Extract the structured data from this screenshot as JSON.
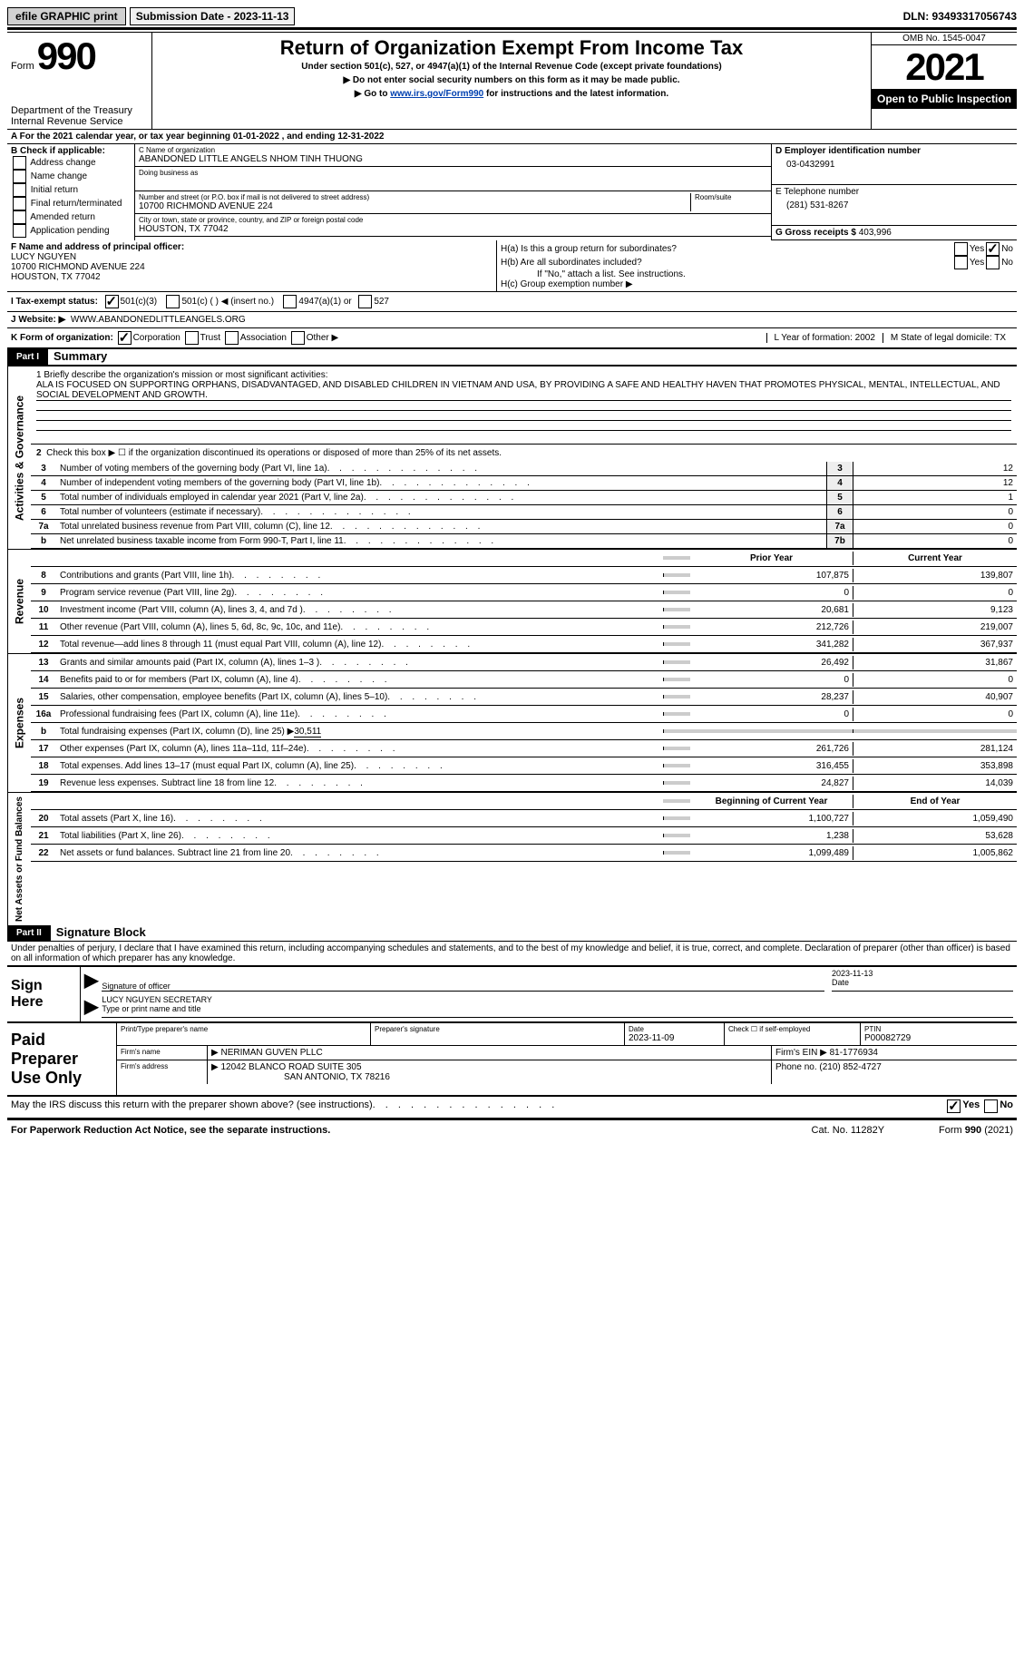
{
  "top": {
    "efile": "efile GRAPHIC print",
    "sub_date_label": "Submission Date - 2023-11-13",
    "dln": "DLN: 93493317056743"
  },
  "header": {
    "form_label": "Form",
    "form_num": "990",
    "title": "Return of Organization Exempt From Income Tax",
    "sub1": "Under section 501(c), 527, or 4947(a)(1) of the Internal Revenue Code (except private foundations)",
    "sub2": "▶ Do not enter social security numbers on this form as it may be made public.",
    "sub3_a": "▶ Go to ",
    "sub3_link": "www.irs.gov/Form990",
    "sub3_b": " for instructions and the latest information.",
    "dept": "Department of the Treasury Internal Revenue Service",
    "omb": "OMB No. 1545-0047",
    "year": "2021",
    "inspect": "Open to Public Inspection"
  },
  "rowA": "A For the 2021 calendar year, or tax year beginning 01-01-2022   , and ending 12-31-2022",
  "colB": {
    "label": "B Check if applicable:",
    "items": [
      "Address change",
      "Name change",
      "Initial return",
      "Final return/terminated",
      "Amended return",
      "Application pending"
    ]
  },
  "colC": {
    "name_label": "C Name of organization",
    "name": "ABANDONED LITTLE ANGELS NHOM TINH THUONG",
    "dba_label": "Doing business as",
    "street_label": "Number and street (or P.O. box if mail is not delivered to street address)",
    "room_label": "Room/suite",
    "street": "10700 RICHMOND AVENUE 224",
    "city_label": "City or town, state or province, country, and ZIP or foreign postal code",
    "city": "HOUSTON, TX  77042"
  },
  "colD": {
    "ein_label": "D Employer identification number",
    "ein": "03-0432991",
    "phone_label": "E Telephone number",
    "phone": "(281) 531-8267",
    "gross_label": "G Gross receipts $",
    "gross": "403,996"
  },
  "rowF": {
    "label": "F  Name and address of principal officer:",
    "name": "LUCY NGUYEN",
    "addr1": "10700 RICHMOND AVENUE 224",
    "addr2": "HOUSTON, TX  77042"
  },
  "rowH": {
    "ha": "H(a)  Is this a group return for subordinates?",
    "hb": "H(b)  Are all subordinates included?",
    "hb_note": "If \"No,\" attach a list. See instructions.",
    "hc": "H(c)  Group exemption number ▶"
  },
  "rowI": {
    "label": "I    Tax-exempt status:",
    "o1": "501(c)(3)",
    "o2": "501(c) (   ) ◀ (insert no.)",
    "o3": "4947(a)(1) or",
    "o4": "527"
  },
  "rowJ": {
    "label": "J    Website: ▶",
    "val": "WWW.ABANDONEDLITTLEANGELS.ORG"
  },
  "rowK": {
    "label": "K Form of organization:",
    "o1": "Corporation",
    "o2": "Trust",
    "o3": "Association",
    "o4": "Other ▶",
    "L": "L Year of formation: 2002",
    "M": "M State of legal domicile: TX"
  },
  "part1": {
    "tag": "Part I",
    "title": "Summary"
  },
  "mission": {
    "label": "1   Briefly describe the organization's mission or most significant activities:",
    "text": "ALA IS FOCUSED ON SUPPORTING ORPHANS, DISADVANTAGED, AND DISABLED CHILDREN IN VIETNAM AND USA, BY PROVIDING A SAFE AND HEALTHY HAVEN THAT PROMOTES PHYSICAL, MENTAL, INTELLECTUAL, AND SOCIAL DEVELOPMENT AND GROWTH."
  },
  "gov": {
    "r2": "Check this box ▶ ☐  if the organization discontinued its operations or disposed of more than 25% of its net assets.",
    "rows": [
      {
        "n": "3",
        "d": "Number of voting members of the governing body (Part VI, line 1a)",
        "l": "3",
        "v": "12"
      },
      {
        "n": "4",
        "d": "Number of independent voting members of the governing body (Part VI, line 1b)",
        "l": "4",
        "v": "12"
      },
      {
        "n": "5",
        "d": "Total number of individuals employed in calendar year 2021 (Part V, line 2a)",
        "l": "5",
        "v": "1"
      },
      {
        "n": "6",
        "d": "Total number of volunteers (estimate if necessary)",
        "l": "6",
        "v": "0"
      },
      {
        "n": "7a",
        "d": "Total unrelated business revenue from Part VIII, column (C), line 12",
        "l": "7a",
        "v": "0"
      },
      {
        "n": "b",
        "d": "Net unrelated business taxable income from Form 990-T, Part I, line 11",
        "l": "7b",
        "v": "0"
      }
    ]
  },
  "rev": {
    "hdr_prior": "Prior Year",
    "hdr_cur": "Current Year",
    "rows": [
      {
        "n": "8",
        "d": "Contributions and grants (Part VIII, line 1h)",
        "p": "107,875",
        "c": "139,807"
      },
      {
        "n": "9",
        "d": "Program service revenue (Part VIII, line 2g)",
        "p": "0",
        "c": "0"
      },
      {
        "n": "10",
        "d": "Investment income (Part VIII, column (A), lines 3, 4, and 7d )",
        "p": "20,681",
        "c": "9,123"
      },
      {
        "n": "11",
        "d": "Other revenue (Part VIII, column (A), lines 5, 6d, 8c, 9c, 10c, and 11e)",
        "p": "212,726",
        "c": "219,007"
      },
      {
        "n": "12",
        "d": "Total revenue—add lines 8 through 11 (must equal Part VIII, column (A), line 12)",
        "p": "341,282",
        "c": "367,937"
      }
    ]
  },
  "exp": {
    "rows": [
      {
        "n": "13",
        "d": "Grants and similar amounts paid (Part IX, column (A), lines 1–3 )",
        "p": "26,492",
        "c": "31,867"
      },
      {
        "n": "14",
        "d": "Benefits paid to or for members (Part IX, column (A), line 4)",
        "p": "0",
        "c": "0"
      },
      {
        "n": "15",
        "d": "Salaries, other compensation, employee benefits (Part IX, column (A), lines 5–10)",
        "p": "28,237",
        "c": "40,907"
      },
      {
        "n": "16a",
        "d": "Professional fundraising fees (Part IX, column (A), line 11e)",
        "p": "0",
        "c": "0"
      }
    ],
    "r16b_n": "b",
    "r16b_d": "Total fundraising expenses (Part IX, column (D), line 25) ▶",
    "r16b_v": "30,511",
    "rows2": [
      {
        "n": "17",
        "d": "Other expenses (Part IX, column (A), lines 11a–11d, 11f–24e)",
        "p": "261,726",
        "c": "281,124"
      },
      {
        "n": "18",
        "d": "Total expenses. Add lines 13–17 (must equal Part IX, column (A), line 25)",
        "p": "316,455",
        "c": "353,898"
      },
      {
        "n": "19",
        "d": "Revenue less expenses. Subtract line 18 from line 12",
        "p": "24,827",
        "c": "14,039"
      }
    ]
  },
  "net": {
    "hdr_b": "Beginning of Current Year",
    "hdr_e": "End of Year",
    "rows": [
      {
        "n": "20",
        "d": "Total assets (Part X, line 16)",
        "p": "1,100,727",
        "c": "1,059,490"
      },
      {
        "n": "21",
        "d": "Total liabilities (Part X, line 26)",
        "p": "1,238",
        "c": "53,628"
      },
      {
        "n": "22",
        "d": "Net assets or fund balances. Subtract line 21 from line 20",
        "p": "1,099,489",
        "c": "1,005,862"
      }
    ]
  },
  "part2": {
    "tag": "Part II",
    "title": "Signature Block"
  },
  "sig": {
    "decl": "Under penalties of perjury, I declare that I have examined this return, including accompanying schedules and statements, and to the best of my knowledge and belief, it is true, correct, and complete. Declaration of preparer (other than officer) is based on all information of which preparer has any knowledge.",
    "here": "Sign Here",
    "date": "2023-11-13",
    "sig_officer": "Signature of officer",
    "date_label": "Date",
    "name": "LUCY NGUYEN  SECRETARY",
    "type_label": "Type or print name and title"
  },
  "prep": {
    "title": "Paid Preparer Use Only",
    "r1": {
      "a": "Print/Type preparer's name",
      "b": "Preparer's signature",
      "c_lbl": "Date",
      "c": "2023-11-09",
      "d": "Check ☐ if self-employed",
      "e_lbl": "PTIN",
      "e": "P00082729"
    },
    "r2": {
      "a": "Firm's name",
      "b": "▶ NERIMAN GUVEN PLLC",
      "c": "Firm's EIN ▶ 81-1776934"
    },
    "r3": {
      "a": "Firm's address",
      "b": "▶ 12042 BLANCO ROAD SUITE 305",
      "b2": "SAN ANTONIO, TX  78216",
      "c": "Phone no. (210) 852-4727"
    }
  },
  "footer": {
    "q": "May the IRS discuss this return with the preparer shown above? (see instructions)",
    "paperwork": "For Paperwork Reduction Act Notice, see the separate instructions.",
    "cat": "Cat. No. 11282Y",
    "form": "Form 990 (2021)"
  }
}
